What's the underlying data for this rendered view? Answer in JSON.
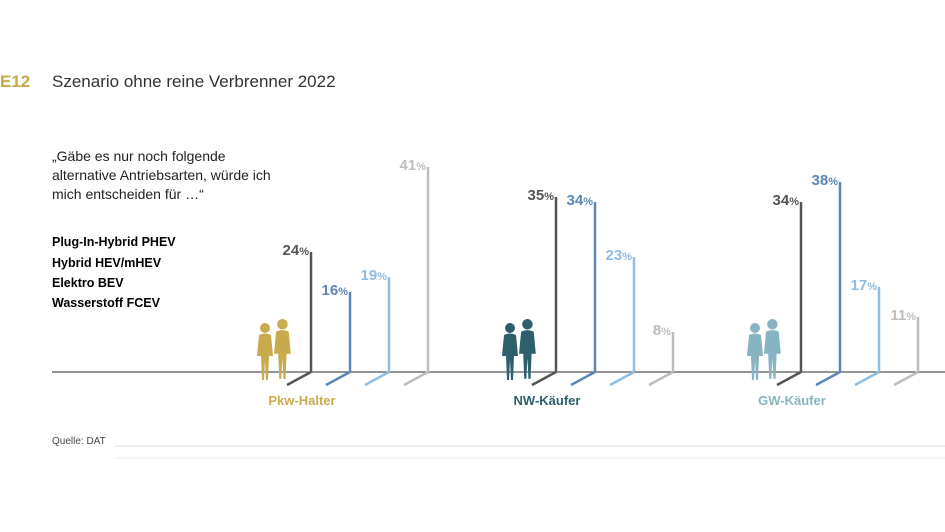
{
  "header": {
    "code": "E12",
    "title": "Szenario ohne reine Verbrenner 2022"
  },
  "question": "„Gäbe es nur noch folgende alternative Antriebsarten, würde ich mich entscheiden für …“",
  "source": "Quelle: DAT",
  "colors": {
    "phev": "#555555",
    "hev": "#5c86b6",
    "bev": "#8fbde3",
    "fcev": "#bdbdbd",
    "pkw_halter": "#c9ab4e",
    "nw_kaeufer": "#2e5f6d",
    "gw_kaeufer": "#86b4c2"
  },
  "legend": [
    {
      "prefix": "Plug-In-Hybrid ",
      "abbr": "PHEV",
      "color": "#777777"
    },
    {
      "prefix": "Hybrid ",
      "abbr": "HEV/mHEV",
      "color": "#5c86b6"
    },
    {
      "prefix": "Elektro ",
      "abbr": "BEV",
      "color": "#8fbde3"
    },
    {
      "prefix": "Wasserstoff ",
      "abbr": "FCEV",
      "color": "#bdbdbd"
    }
  ],
  "chart_data": {
    "type": "bar",
    "categories": [
      "Pkw-Halter",
      "NW-Käufer",
      "GW-Käufer"
    ],
    "unit": "%",
    "series": [
      {
        "name": "Plug-In-Hybrid PHEV",
        "values": [
          24,
          35,
          34
        ]
      },
      {
        "name": "Hybrid HEV/mHEV",
        "values": [
          16,
          34,
          38
        ]
      },
      {
        "name": "Elektro BEV",
        "values": [
          19,
          23,
          17
        ]
      },
      {
        "name": "Wasserstoff FCEV",
        "values": [
          41,
          8,
          11
        ]
      }
    ]
  }
}
